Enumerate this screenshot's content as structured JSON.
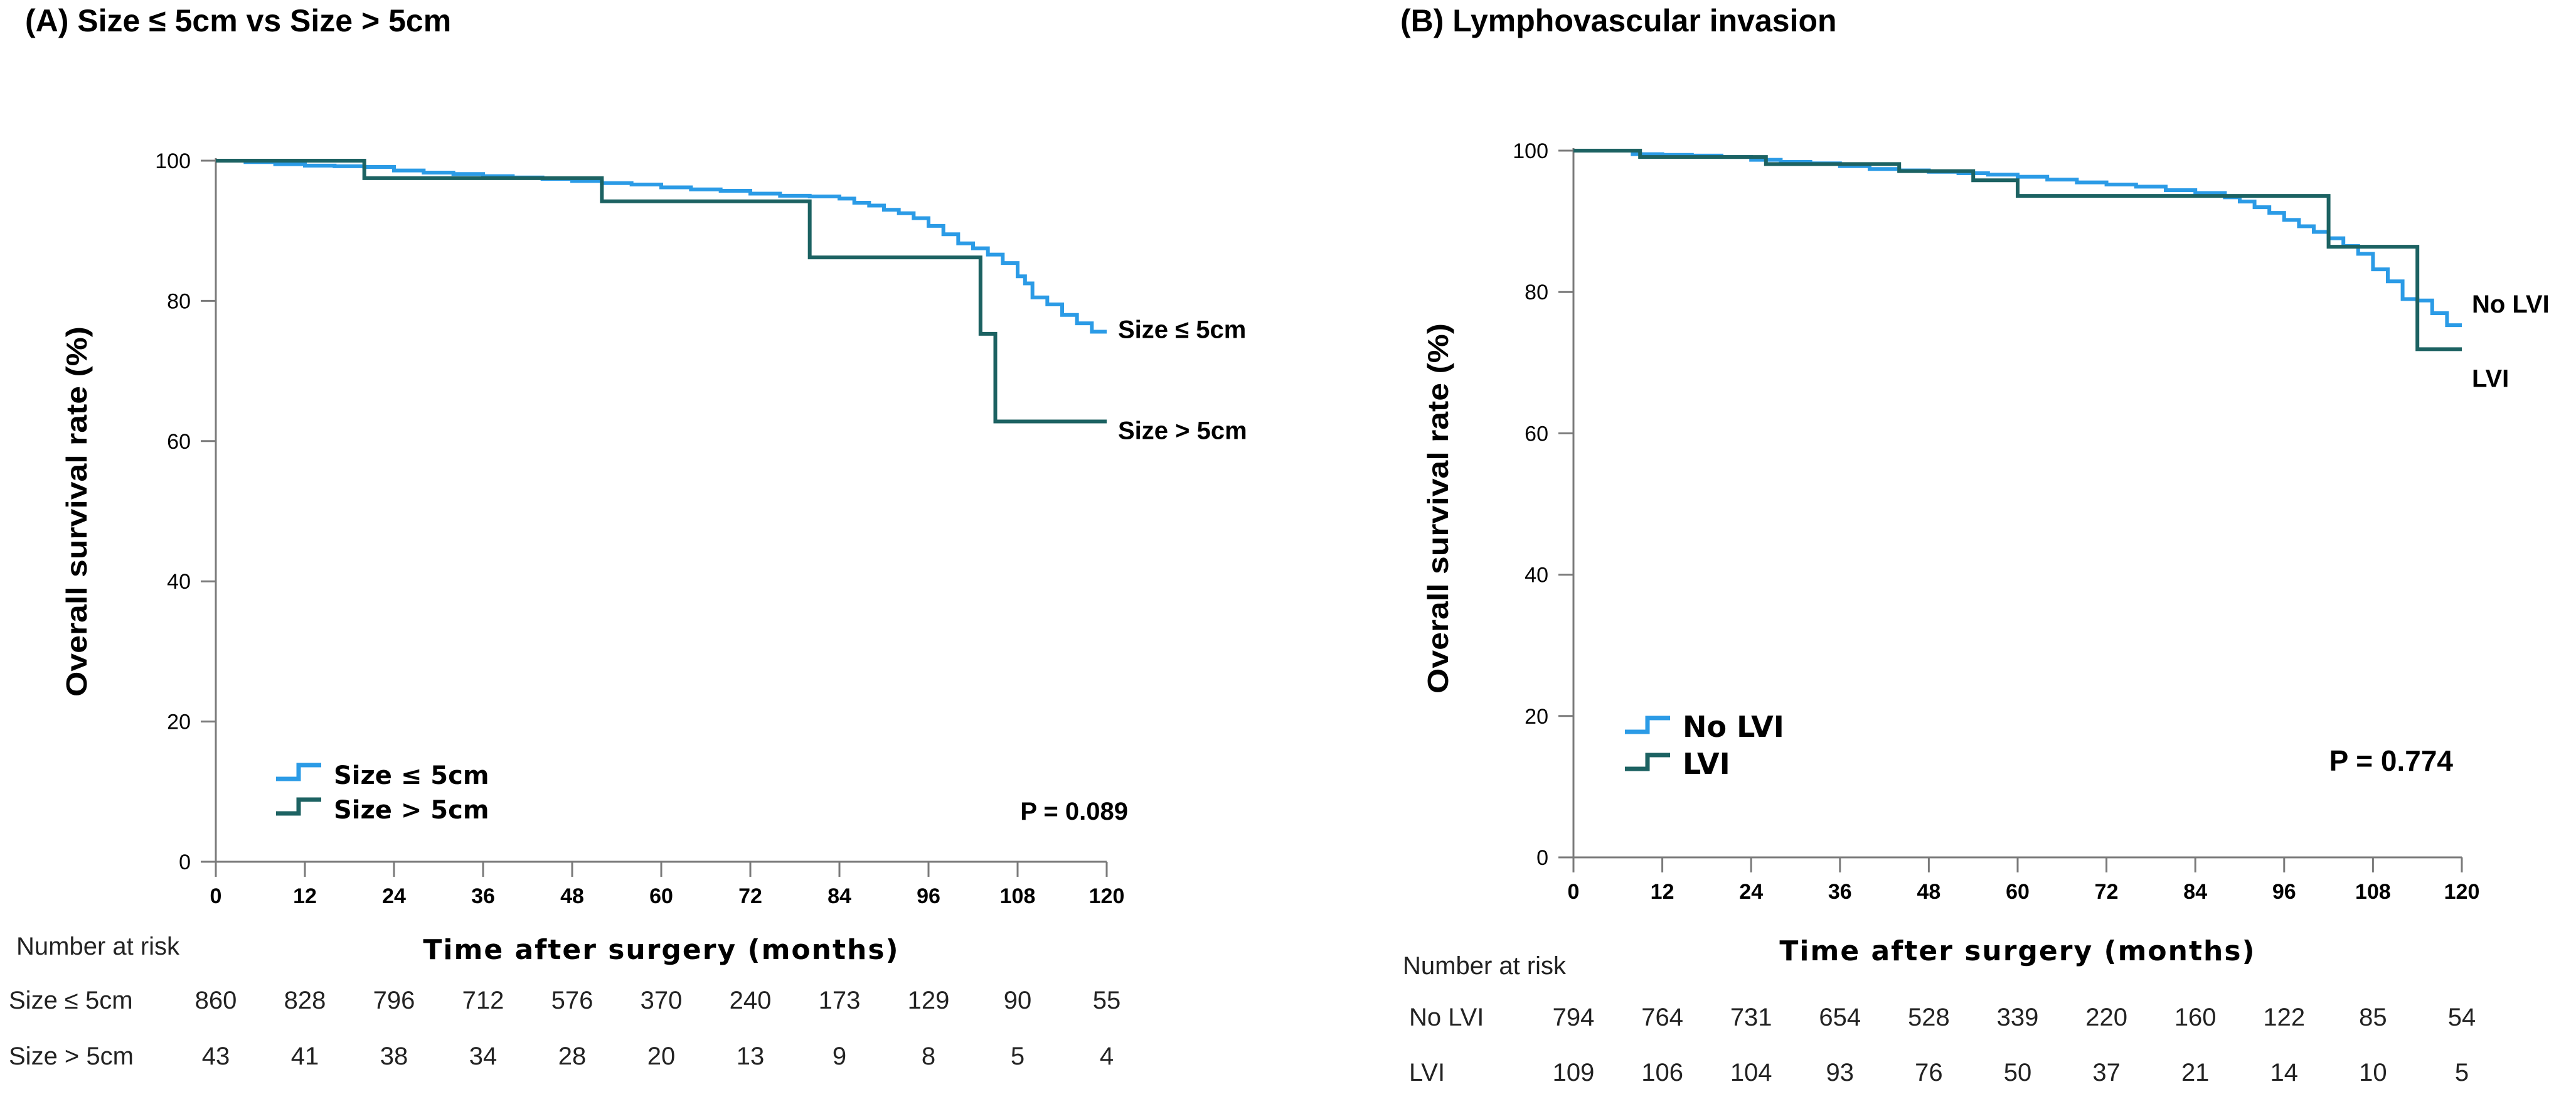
{
  "chart_data": [
    {
      "type": "line",
      "panel": "A",
      "title": "(A)  Size ≤ 5cm vs Size > 5cm",
      "xlabel": "Time after surgery (months)",
      "ylabel": "Overall survival rate (%)",
      "xlim": [
        0,
        120
      ],
      "ylim": [
        0,
        100
      ],
      "xticks": [
        0,
        12,
        24,
        36,
        48,
        60,
        72,
        84,
        96,
        108,
        120
      ],
      "yticks": [
        0,
        20,
        40,
        60,
        80,
        100
      ],
      "step": true,
      "legend_placement": "bottom-left",
      "grid": false,
      "p_value": "P = 0.089",
      "series": [
        {
          "name": "Size ≤ 5cm",
          "end_label": "Size ≤ 5cm",
          "color": "#2b9be6",
          "x": [
            0,
            4,
            8,
            12,
            16,
            20,
            24,
            28,
            32,
            36,
            40,
            44,
            48,
            52,
            56,
            60,
            64,
            68,
            72,
            76,
            80,
            84,
            86,
            88,
            90,
            92,
            94,
            96,
            98,
            100,
            102,
            104,
            106,
            108,
            109,
            110,
            112,
            114,
            116,
            118,
            120
          ],
          "y": [
            100,
            99.8,
            99.5,
            99.3,
            99.2,
            99.1,
            98.6,
            98.3,
            98.1,
            97.8,
            97.6,
            97.4,
            97.1,
            96.8,
            96.6,
            96.2,
            95.9,
            95.7,
            95.3,
            95.0,
            94.9,
            94.6,
            94.0,
            93.6,
            93.0,
            92.5,
            91.8,
            90.7,
            89.5,
            88.2,
            87.5,
            86.6,
            85.4,
            83.5,
            82.5,
            80.5,
            79.5,
            78.0,
            76.8,
            75.6,
            75.6
          ]
        },
        {
          "name": "Size > 5cm",
          "end_label": "Size > 5cm",
          "color": "#1c6262",
          "x": [
            0,
            20,
            52,
            80,
            103,
            105,
            120
          ],
          "y": [
            100,
            97.5,
            94.2,
            86.2,
            75.3,
            62.8,
            62.8
          ]
        }
      ],
      "risk_table": {
        "header": "Number at risk",
        "rows": [
          {
            "label": "Size ≤ 5cm",
            "values": [
              "860",
              "828",
              "796",
              "712",
              "576",
              "370",
              "240",
              "173",
              "129",
              "90",
              "55"
            ]
          },
          {
            "label": "Size > 5cm",
            "values": [
              "43",
              "41",
              "38",
              "34",
              "28",
              "20",
              "13",
              "9",
              "8",
              "5",
              "4"
            ]
          }
        ]
      }
    },
    {
      "type": "line",
      "panel": "B",
      "title": "(B) Lymphovascular invasion",
      "xlabel": "Time after surgery (months)",
      "ylabel": "Overall survival rate (%)",
      "xlim": [
        0,
        120
      ],
      "ylim": [
        0,
        100
      ],
      "xticks": [
        0,
        12,
        24,
        36,
        48,
        60,
        72,
        84,
        96,
        108,
        120
      ],
      "yticks": [
        0,
        20,
        40,
        60,
        80,
        100
      ],
      "step": true,
      "legend_placement": "bottom-left",
      "grid": false,
      "p_value": "P = 0.774",
      "series": [
        {
          "name": "No LVI",
          "end_label": "No LVI",
          "color": "#2b9be6",
          "x": [
            0,
            8,
            12,
            16,
            20,
            24,
            28,
            32,
            36,
            40,
            44,
            48,
            52,
            56,
            60,
            64,
            68,
            72,
            76,
            80,
            84,
            88,
            90,
            92,
            94,
            96,
            98,
            100,
            102,
            104,
            106,
            108,
            110,
            112,
            114,
            116,
            118,
            120
          ],
          "y": [
            100,
            99.5,
            99.4,
            99.3,
            99.1,
            98.7,
            98.4,
            98.2,
            97.8,
            97.4,
            97.2,
            97.0,
            96.8,
            96.6,
            96.3,
            95.9,
            95.5,
            95.2,
            94.9,
            94.4,
            94.0,
            93.4,
            92.8,
            92.0,
            91.2,
            90.2,
            89.3,
            88.5,
            87.6,
            86.5,
            85.4,
            83.2,
            81.5,
            79.0,
            78.8,
            77.0,
            75.3,
            75.3
          ]
        },
        {
          "name": "LVI",
          "end_label": "LVI",
          "color": "#1c6262",
          "x": [
            0,
            9,
            20,
            26,
            44,
            48,
            54,
            60,
            102,
            104,
            110,
            114,
            120
          ],
          "y": [
            100,
            99.1,
            99.1,
            98.1,
            97.1,
            97.1,
            95.8,
            93.6,
            86.4,
            86.4,
            86.4,
            71.9,
            71.9
          ]
        }
      ],
      "risk_table": {
        "header": "Number at risk",
        "rows": [
          {
            "label": "No LVI",
            "values": [
              "794",
              "764",
              "731",
              "654",
              "528",
              "339",
              "220",
              "160",
              "122",
              "85",
              "54"
            ]
          },
          {
            "label": "LVI",
            "values": [
              "109",
              "106",
              "104",
              "93",
              "76",
              "50",
              "37",
              "21",
              "14",
              "10",
              "5"
            ]
          }
        ]
      }
    }
  ]
}
